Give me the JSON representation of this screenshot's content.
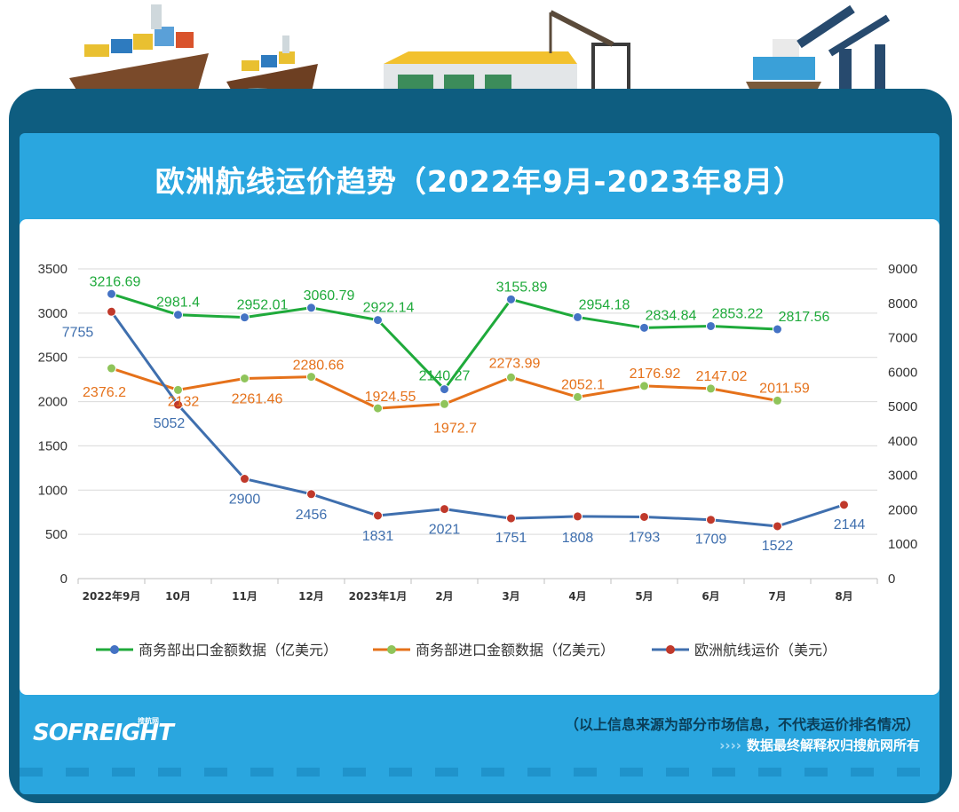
{
  "title": "欧洲航线运价趋势（2022年9月-2023年8月）",
  "logo_text": "SOFREIGHT",
  "logo_subtext": "搜航网",
  "footer": {
    "line1": "（以上信息来源为部分市场信息，不代表运价排名情况）",
    "arrows": "››››",
    "line2": "数据最终解释权归搜航网所有"
  },
  "colors": {
    "export": "#1faa3b",
    "import": "#e5711a",
    "freight": "#3f6fae",
    "freight_marker": "#c0392b",
    "import_marker": "#8fc45a",
    "export_marker": "#4472c4"
  },
  "chart_data": {
    "type": "line",
    "title": "欧洲航线运价趋势（2022年9月-2023年8月）",
    "categories": [
      "2022年9月",
      "10月",
      "11月",
      "12月",
      "2023年1月",
      "2月",
      "3月",
      "4月",
      "5月",
      "6月",
      "7月",
      "8月"
    ],
    "y_left": {
      "min": 0,
      "max": 3500,
      "ticks": [
        0,
        500,
        1000,
        1500,
        2000,
        2500,
        3000,
        3500
      ]
    },
    "y_right": {
      "min": 0,
      "max": 9000,
      "ticks": [
        0,
        1000,
        2000,
        3000,
        4000,
        5000,
        6000,
        7000,
        8000,
        9000
      ]
    },
    "grid": true,
    "legend_position": "bottom",
    "series": [
      {
        "name": "商务部出口金额数据（亿美元）",
        "axis": "left",
        "color": "#1faa3b",
        "values": [
          3216.69,
          2981.4,
          2952.01,
          3060.79,
          2922.14,
          2140.27,
          3155.89,
          2954.18,
          2834.84,
          2853.22,
          2817.56,
          null
        ],
        "labels": [
          "3216.69",
          "2981.4",
          "2952.01",
          "3060.79",
          "2922.14",
          "2140.27",
          "3155.89",
          "2954.18",
          "2834.84",
          "2853.22",
          "2817.56",
          ""
        ]
      },
      {
        "name": "商务部进口金额数据（亿美元）",
        "axis": "left",
        "color": "#e5711a",
        "values": [
          2376.2,
          2132,
          2261.46,
          2280.66,
          1924.55,
          1972.7,
          2273.99,
          2052.1,
          2176.92,
          2147.02,
          2011.59,
          null
        ],
        "labels": [
          "2376.2",
          "2132",
          "2261.46",
          "2280.66",
          "1924.55",
          "1972.7",
          "2273.99",
          "2052.1",
          "2176.92",
          "2147.02",
          "2011.59",
          ""
        ]
      },
      {
        "name": "欧洲航线运价（美元）",
        "axis": "right",
        "color": "#3f6fae",
        "values": [
          7755,
          5052,
          2900,
          2456,
          1831,
          2021,
          1751,
          1808,
          1793,
          1709,
          1522,
          2144
        ],
        "labels": [
          "7755",
          "5052",
          "2900",
          "2456",
          "1831",
          "2021",
          "1751",
          "1808",
          "1793",
          "1709",
          "1522",
          "2144"
        ]
      }
    ]
  }
}
